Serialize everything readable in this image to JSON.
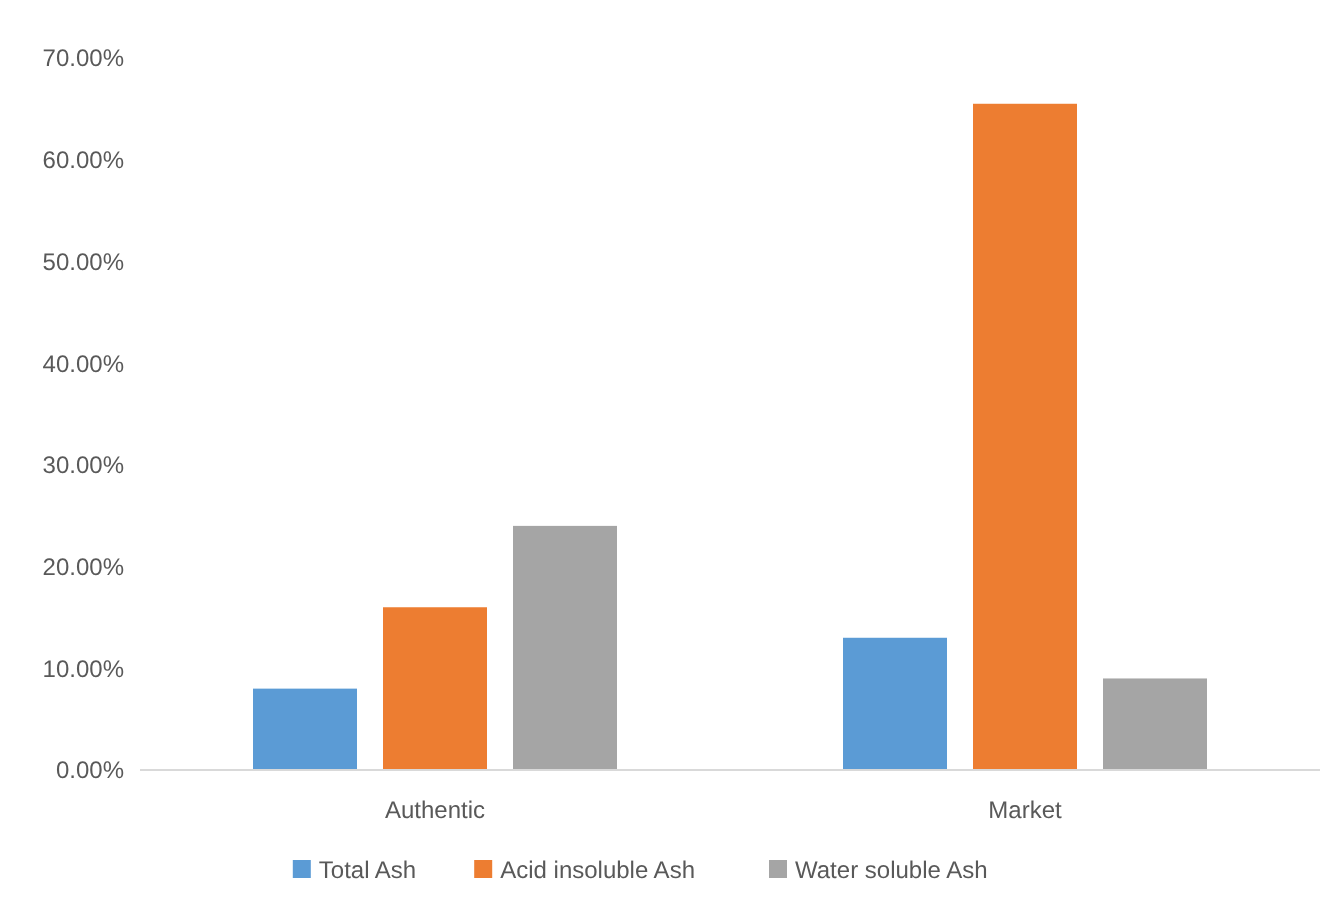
{
  "chart_data": {
    "type": "bar",
    "categories": [
      "Authentic",
      "Market"
    ],
    "series": [
      {
        "name": "Total Ash",
        "color": "#5b9bd5",
        "values": [
          8,
          13
        ]
      },
      {
        "name": "Acid insoluble Ash",
        "color": "#ed7d31",
        "values": [
          16,
          65.5
        ]
      },
      {
        "name": "Water soluble Ash",
        "color": "#a5a5a5",
        "values": [
          24,
          9
        ]
      }
    ],
    "ylim": [
      0,
      70
    ],
    "yticks": [
      {
        "value": 0,
        "label": "0.00%"
      },
      {
        "value": 10,
        "label": "10.00%"
      },
      {
        "value": 20,
        "label": "20.00%"
      },
      {
        "value": 30,
        "label": "30.00%"
      },
      {
        "value": 40,
        "label": "40.00%"
      },
      {
        "value": 50,
        "label": "50.00%"
      },
      {
        "value": 60,
        "label": "60.00%"
      },
      {
        "value": 70,
        "label": "70.00%"
      }
    ],
    "grid": false,
    "legend": "bottom"
  }
}
